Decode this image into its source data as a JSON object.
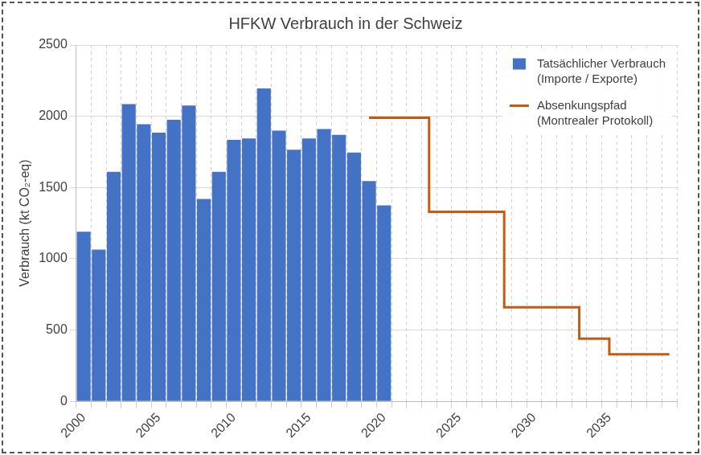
{
  "chart_data": {
    "type": "bar",
    "title": "HFKW Verbrauch in der Schweiz",
    "y_label": "Verbrauch (kt CO₂-eq)",
    "categories": [
      "2000",
      null,
      null,
      null,
      null,
      "2005",
      null,
      null,
      null,
      null,
      "2010",
      null,
      null,
      null,
      null,
      "2015",
      null,
      null,
      null,
      null,
      "2020",
      null,
      null,
      null,
      null,
      "2025",
      null,
      null,
      null,
      null,
      "2030",
      null,
      null,
      null,
      null,
      "2035",
      null,
      null,
      null,
      null
    ],
    "series": [
      {
        "name": "Tatsächlicher Verbrauch (Importe / Exporte)",
        "type": "bar",
        "color": "#4472c4",
        "values": [
          1190,
          1065,
          1610,
          2085,
          1945,
          1885,
          1975,
          2075,
          1420,
          1610,
          1835,
          1845,
          2195,
          1900,
          1765,
          1845,
          1910,
          1870,
          1745,
          1545,
          1375,
          null,
          null,
          null,
          null,
          null,
          null,
          null,
          null,
          null,
          null,
          null,
          null,
          null,
          null,
          null,
          null,
          null,
          null,
          null
        ]
      },
      {
        "name": "Absenkungspfad (Montrealer Protokoll)",
        "type": "line",
        "line_style": "step",
        "color": "#c55a11",
        "values": [
          null,
          null,
          null,
          null,
          null,
          null,
          null,
          null,
          null,
          null,
          null,
          null,
          null,
          null,
          null,
          null,
          null,
          null,
          null,
          1990,
          1990,
          1990,
          1990,
          1990,
          1330,
          1330,
          1330,
          1330,
          1330,
          660,
          660,
          660,
          660,
          660,
          440,
          440,
          330,
          330,
          330,
          330
        ]
      }
    ],
    "ylim": [
      0,
      2500
    ],
    "yticks": [
      0,
      500,
      1000,
      1500,
      2000,
      2500
    ],
    "grid": true,
    "legend": "upper right"
  }
}
